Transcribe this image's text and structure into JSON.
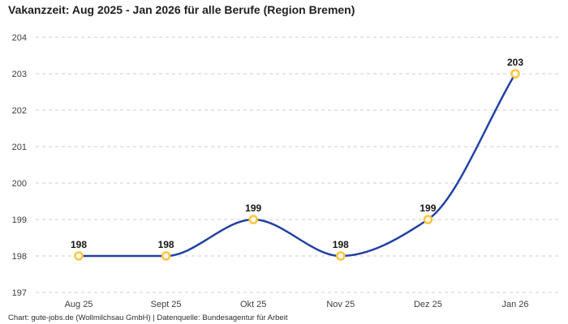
{
  "title": "Vakanzzeit: Aug 2025 - Jan 2026 für alle Berufe (Region Bremen)",
  "footer": "Chart: gute-jobs.de (Wollmilchsau GmbH) | Datenquelle: Bundesagentur für Arbeit",
  "chart_data": {
    "type": "line",
    "title": "Vakanzzeit: Aug 2025 - Jan 2026 für alle Berufe (Region Bremen)",
    "categories": [
      "Aug 25",
      "Sept 25",
      "Okt 25",
      "Nov 25",
      "Dez 25",
      "Jan 26"
    ],
    "values": [
      198,
      198,
      199,
      198,
      199,
      203
    ],
    "data_labels": [
      "198",
      "198",
      "199",
      "198",
      "199",
      "203"
    ],
    "xlabel": "",
    "ylabel": "",
    "ylim": [
      197,
      204
    ],
    "ytick_step": 1,
    "yticks": [
      197,
      198,
      199,
      200,
      201,
      202,
      203,
      204
    ],
    "grid": "horizontal-dashed",
    "legend": "none",
    "curve": "monotone",
    "colors": {
      "line": "#2341a3",
      "marker_stroke": "#ffc53d",
      "marker_fill": "#ffffff",
      "gridline": "#cccccc",
      "tick_label": "#3d3d3d",
      "data_label": "#141414",
      "title": "#1f1f1f",
      "footer": "#2e2e2e",
      "background": "#ffffff"
    }
  }
}
